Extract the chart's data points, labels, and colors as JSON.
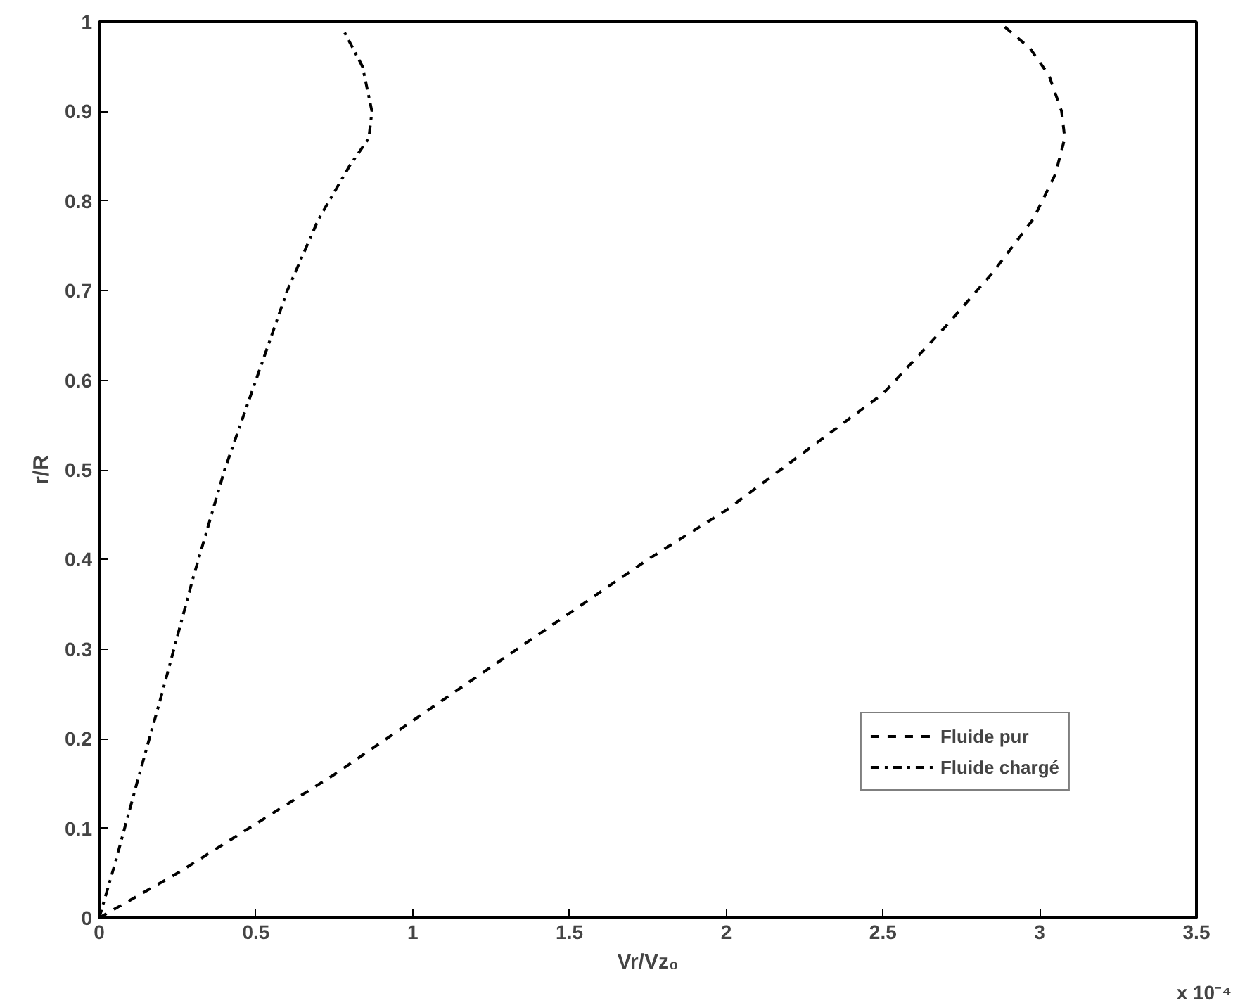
{
  "chart_data": {
    "type": "line",
    "xlabel": "Vr/Vz₀",
    "ylabel": "r/R",
    "annotations": [
      "x 10⁻⁴"
    ],
    "xlim": [
      0,
      3.5
    ],
    "xticks": [
      0,
      0.5,
      1,
      1.5,
      2,
      2.5,
      3,
      3.5
    ],
    "ylim": [
      0,
      1
    ],
    "yticks": [
      0,
      0.1,
      0.2,
      0.3,
      0.4,
      0.5,
      0.6,
      0.7,
      0.8,
      0.9,
      1
    ],
    "grid": false,
    "legend": "bottom right",
    "marker": "none",
    "series": [
      {
        "name": "Fluide pur",
        "color": "#000000",
        "line_style": "dashed",
        "x": [
          0,
          0.25,
          0.5,
          0.75,
          1,
          1.25,
          1.5,
          1.75,
          2,
          2.25,
          2.5,
          2.7,
          2.85,
          2.98,
          3.05,
          3.08,
          3.07,
          3.03,
          2.97,
          2.87
        ],
        "values": [
          0,
          0.05,
          0.105,
          0.16,
          0.22,
          0.28,
          0.34,
          0.4,
          0.455,
          0.52,
          0.585,
          0.66,
          0.72,
          0.78,
          0.83,
          0.87,
          0.9,
          0.94,
          0.97,
          1.0
        ]
      },
      {
        "name": "Fluide chargé",
        "color": "#000000",
        "line_style": "dashdot",
        "x": [
          0,
          0.05,
          0.12,
          0.2,
          0.3,
          0.4,
          0.5,
          0.6,
          0.7,
          0.8,
          0.86,
          0.87,
          0.84,
          0.78
        ],
        "values": [
          0,
          0.06,
          0.15,
          0.25,
          0.38,
          0.5,
          0.6,
          0.7,
          0.78,
          0.84,
          0.87,
          0.9,
          0.95,
          0.99
        ]
      }
    ]
  }
}
